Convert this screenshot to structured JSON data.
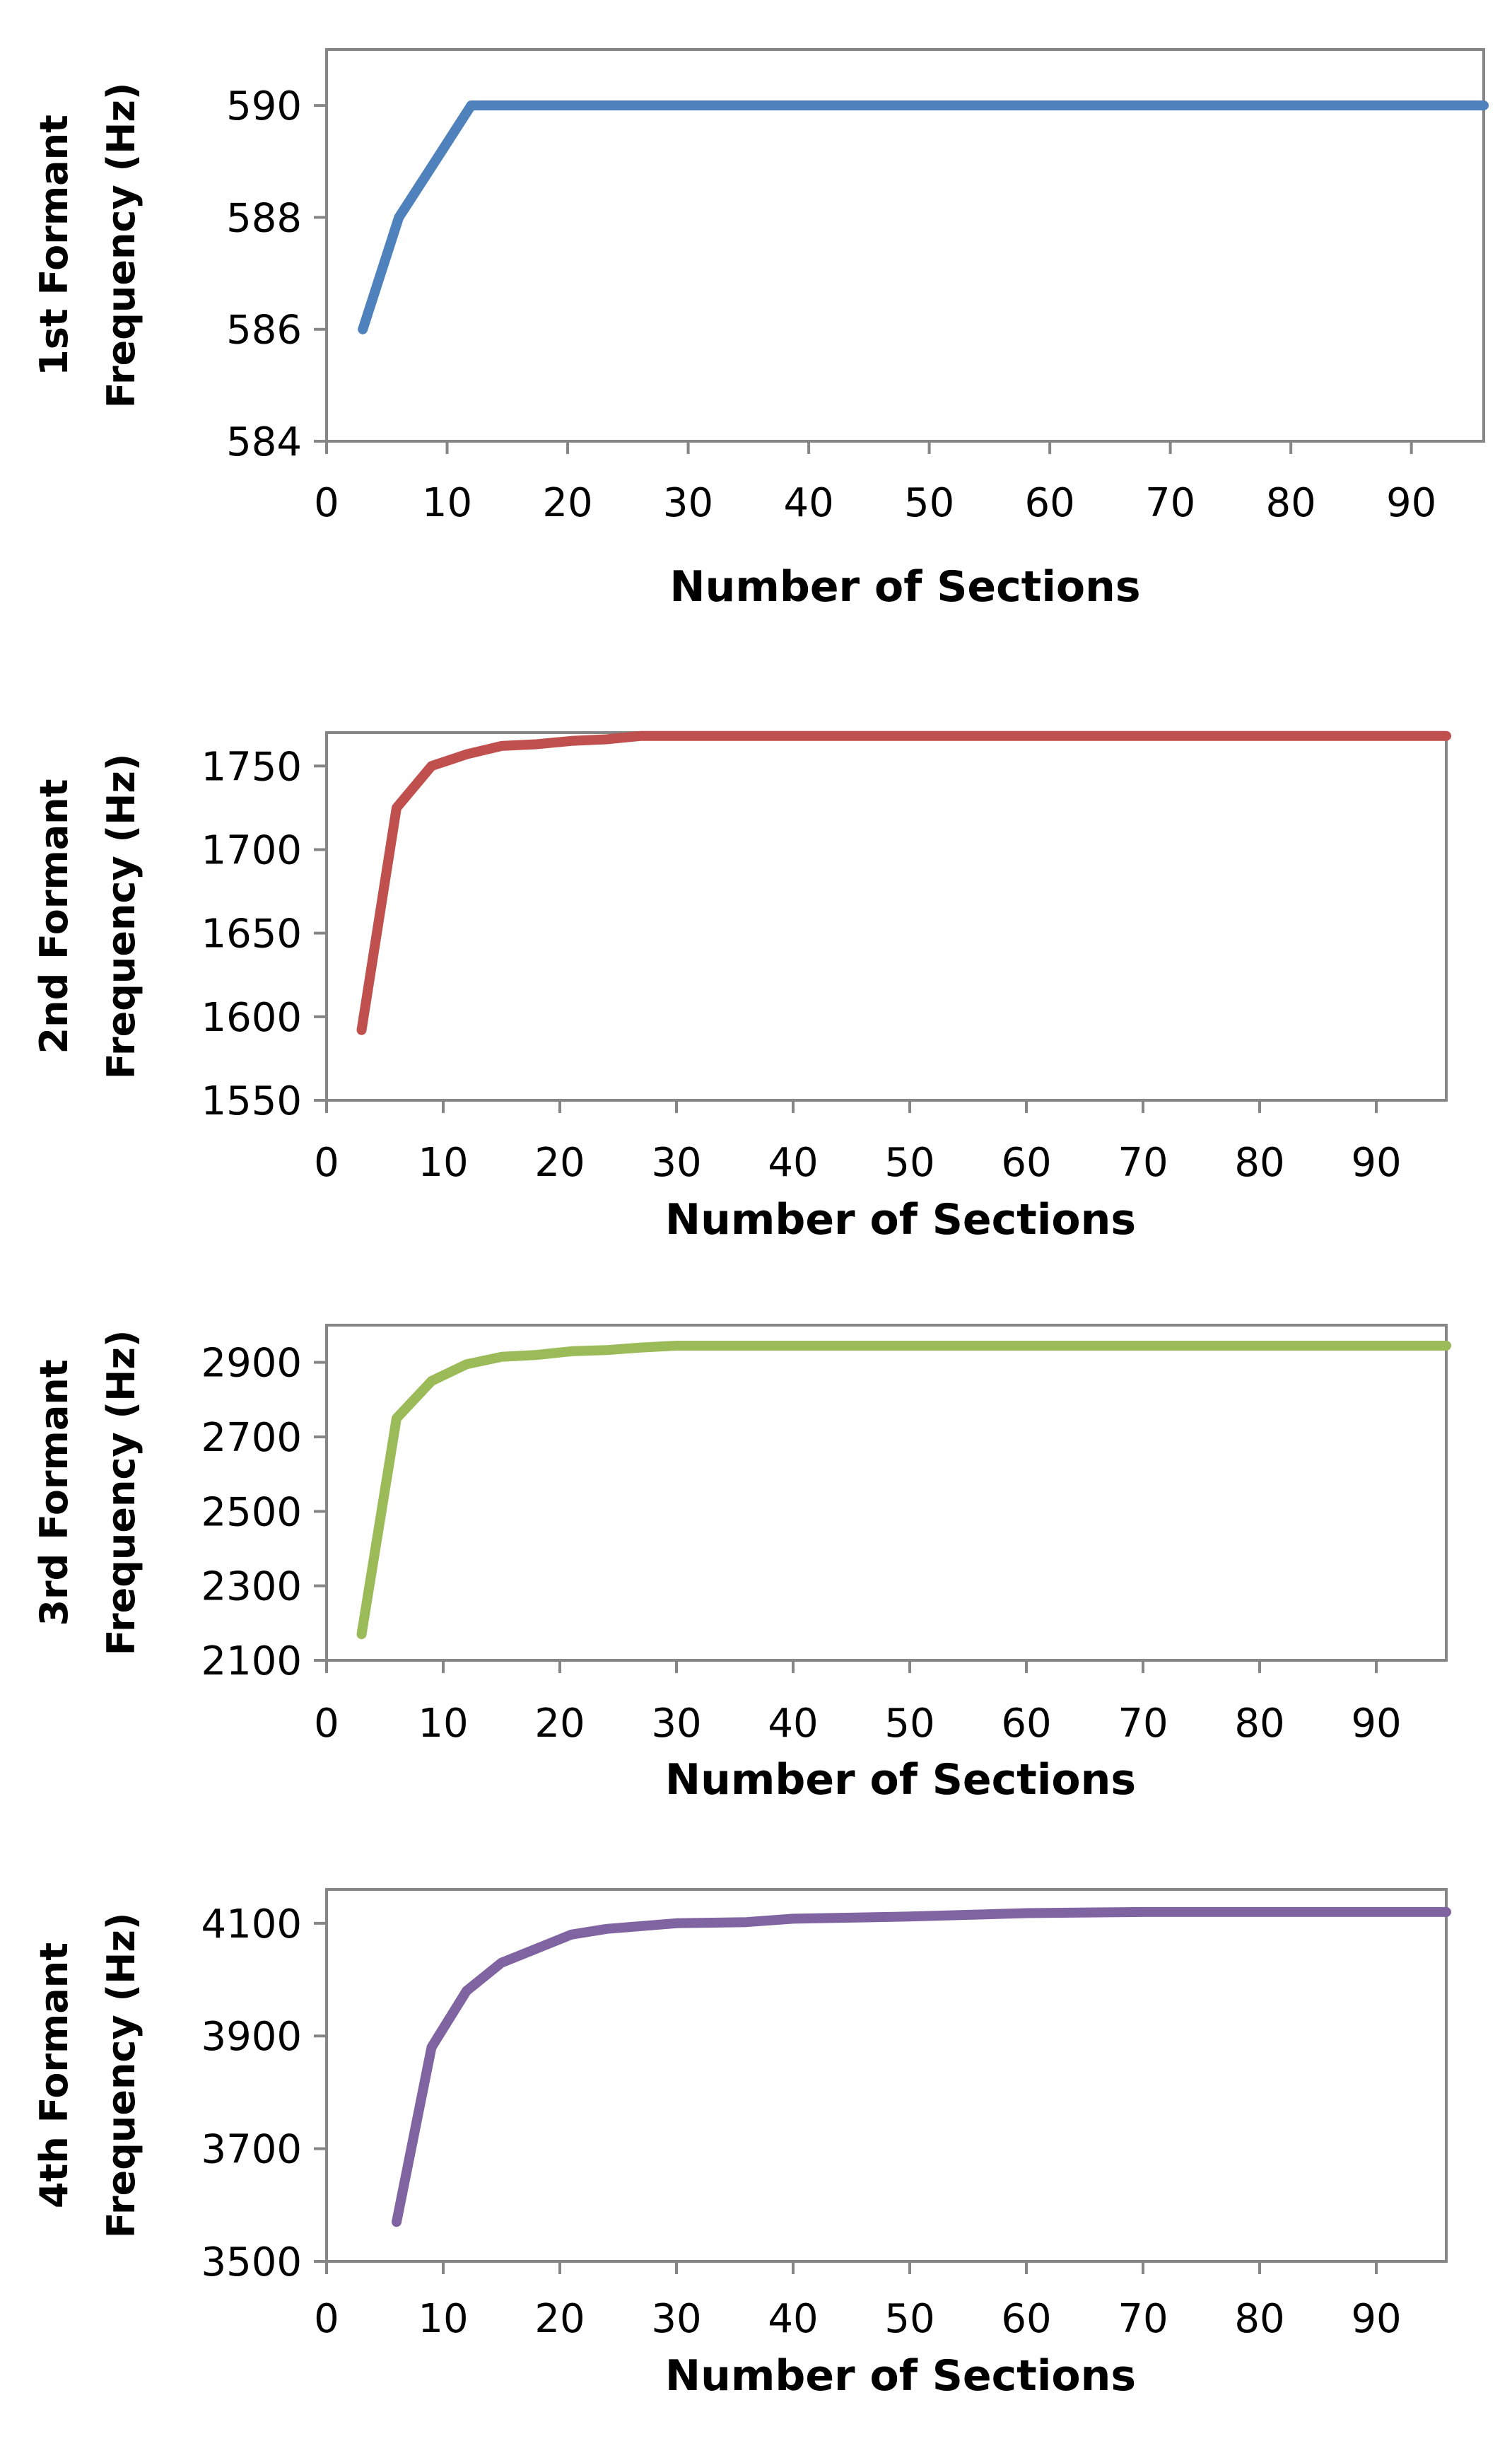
{
  "chart_data": [
    {
      "type": "line",
      "name": "f1",
      "ylabel_lines": [
        "1st Formant",
        "Frequency (Hz)"
      ],
      "xlabel": "Number of Sections",
      "xlim": [
        0,
        96
      ],
      "xticks": [
        0,
        10,
        20,
        30,
        40,
        50,
        60,
        70,
        80,
        90
      ],
      "ylim": [
        584,
        591
      ],
      "yticks": [
        584,
        586,
        588,
        590
      ],
      "color": "#4f81bd",
      "series": [
        {
          "name": "1st Formant",
          "x": [
            3,
            6,
            9,
            12,
            20,
            40,
            60,
            80,
            96
          ],
          "y": [
            586,
            588,
            589,
            590,
            590,
            590,
            590,
            590,
            590
          ]
        }
      ]
    },
    {
      "type": "line",
      "name": "f2",
      "ylabel_lines": [
        "2nd Formant",
        "Frequency (Hz)"
      ],
      "xlabel": "Number of Sections",
      "xlim": [
        0,
        96
      ],
      "xticks": [
        0,
        10,
        20,
        30,
        40,
        50,
        60,
        70,
        80,
        90
      ],
      "ylim": [
        1550,
        1770
      ],
      "yticks": [
        1550,
        1600,
        1650,
        1700,
        1750
      ],
      "color": "#c0504d",
      "series": [
        {
          "name": "2nd Formant",
          "x": [
            3,
            6,
            9,
            12,
            15,
            18,
            21,
            24,
            27,
            30,
            40,
            60,
            80,
            96
          ],
          "y": [
            1592,
            1725,
            1750,
            1757,
            1762,
            1763,
            1765,
            1766,
            1768,
            1768,
            1768,
            1768,
            1768,
            1768
          ]
        }
      ]
    },
    {
      "type": "line",
      "name": "f3",
      "ylabel_lines": [
        "3rd Formant",
        "Frequency (Hz)"
      ],
      "xlabel": "Number of Sections",
      "xlim": [
        0,
        96
      ],
      "xticks": [
        0,
        10,
        20,
        30,
        40,
        50,
        60,
        70,
        80,
        90
      ],
      "ylim": [
        2100,
        3000
      ],
      "yticks": [
        2100,
        2300,
        2500,
        2700,
        2900
      ],
      "color": "#9bbb59",
      "series": [
        {
          "name": "3rd Formant",
          "x": [
            3,
            6,
            9,
            12,
            15,
            18,
            21,
            24,
            27,
            30,
            40,
            60,
            80,
            96
          ],
          "y": [
            2170,
            2750,
            2850,
            2895,
            2915,
            2920,
            2930,
            2933,
            2940,
            2945,
            2945,
            2945,
            2945,
            2945
          ]
        }
      ]
    },
    {
      "type": "line",
      "name": "f4",
      "ylabel_lines": [
        "4th Formant",
        "Frequency (Hz)"
      ],
      "xlabel": "Number of Sections",
      "xlim": [
        0,
        96
      ],
      "xticks": [
        0,
        10,
        20,
        30,
        40,
        50,
        60,
        70,
        80,
        90
      ],
      "ylim": [
        3500,
        4160
      ],
      "yticks": [
        3500,
        3700,
        3900,
        4100
      ],
      "color": "#8064a2",
      "series": [
        {
          "name": "4th Formant",
          "x": [
            6,
            9,
            12,
            15,
            18,
            21,
            24,
            27,
            30,
            36,
            40,
            50,
            60,
            70,
            80,
            96
          ],
          "y": [
            3570,
            3880,
            3980,
            4030,
            4055,
            4080,
            4090,
            4095,
            4100,
            4102,
            4108,
            4112,
            4118,
            4120,
            4120,
            4120
          ]
        }
      ]
    }
  ]
}
